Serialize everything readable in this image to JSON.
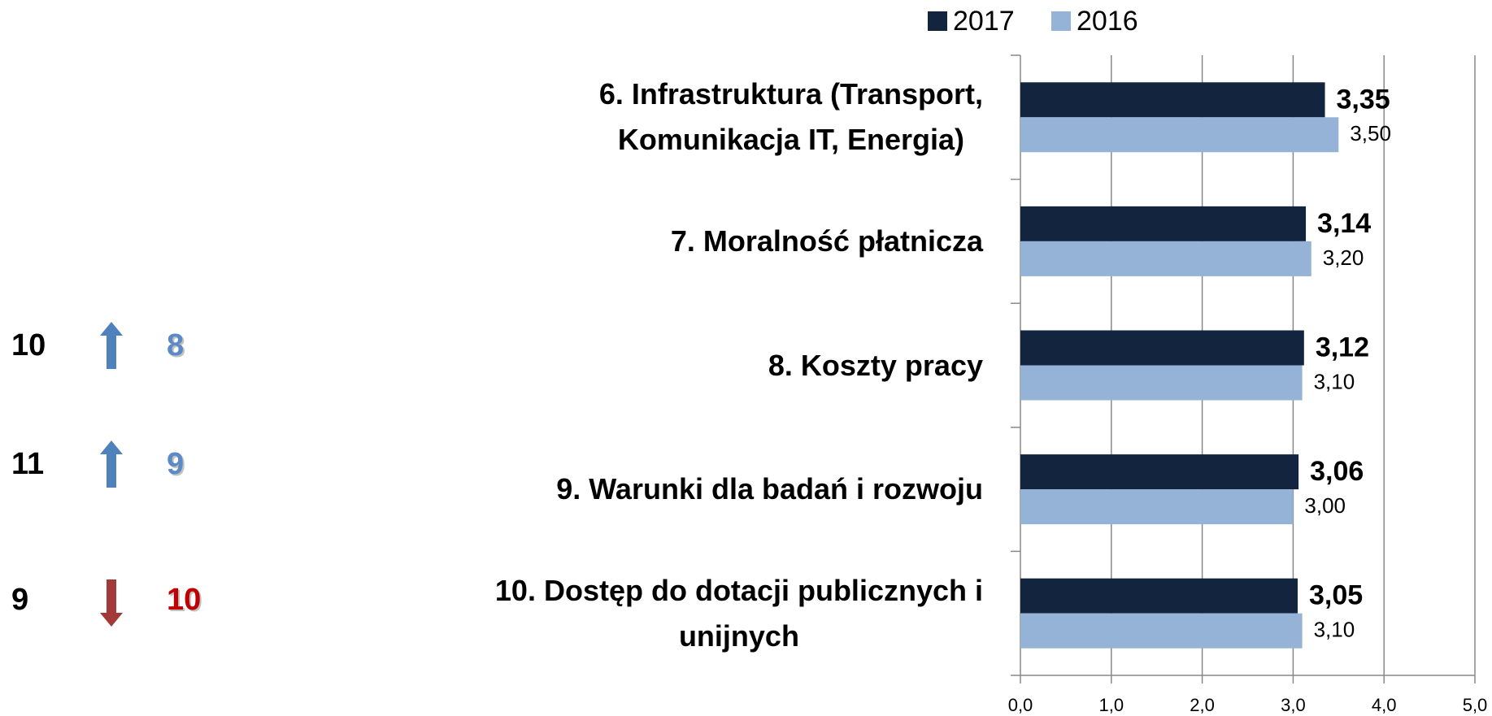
{
  "chart_data": {
    "type": "barh",
    "categories": [
      "6. Infrastruktura (Transport,\nKomunikacja IT, Energia)",
      "7. Moralność płatnicza",
      "8. Koszty pracy",
      "9. Warunki dla badań i rozwoju",
      "10. Dostęp do dotacji publicznych i\nunijnych"
    ],
    "series": [
      {
        "name": "2017",
        "color": "#13243f",
        "values": [
          3.35,
          3.14,
          3.12,
          3.06,
          3.05
        ],
        "value_labels": [
          "3,35",
          "3,14",
          "3,12",
          "3,06",
          "3,05"
        ]
      },
      {
        "name": "2016",
        "color": "#95b3d7",
        "values": [
          3.5,
          3.2,
          3.1,
          3.0,
          3.1
        ],
        "value_labels": [
          "3,50",
          "3,20",
          "3,10",
          "3,00",
          "3,10"
        ]
      }
    ],
    "xlim": [
      0,
      5
    ],
    "xticks": [
      {
        "value": 0,
        "label": "0,0"
      },
      {
        "value": 1,
        "label": "1,0"
      },
      {
        "value": 2,
        "label": "2,0"
      },
      {
        "value": 3,
        "label": "3,0"
      },
      {
        "value": 4,
        "label": "4,0"
      },
      {
        "value": 5,
        "label": "5,0"
      }
    ],
    "grid": true,
    "legend": "top"
  },
  "rankings": [
    {
      "previous": 10,
      "current": 8
    },
    {
      "previous": 11,
      "current": 9
    },
    {
      "previous": 9,
      "current": 10
    }
  ]
}
